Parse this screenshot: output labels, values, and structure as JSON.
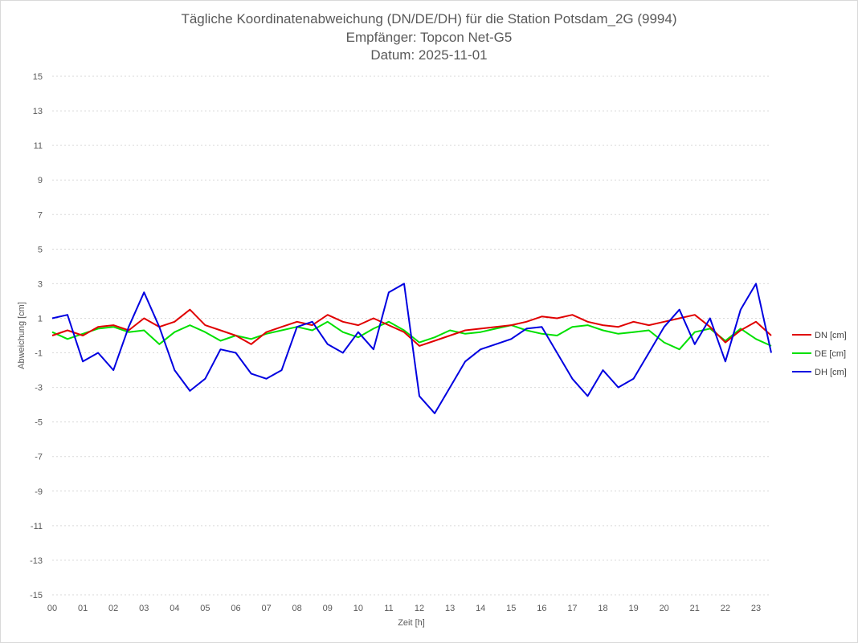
{
  "chart_data": {
    "type": "line",
    "title_lines": [
      "Tägliche Koordinatenabweichung (DN/DE/DH) für die Station Potsdam_2G (9994)",
      "Empfänger: Topcon Net-G5",
      "Datum: 2025-11-01"
    ],
    "xlabel": "Zeit [h]",
    "ylabel": "Abweichung [cm]",
    "xlim": [
      0,
      23.5
    ],
    "ylim": [
      -15,
      15
    ],
    "x_tick_labels": [
      "00",
      "01",
      "02",
      "03",
      "04",
      "05",
      "06",
      "07",
      "08",
      "09",
      "10",
      "11",
      "12",
      "13",
      "14",
      "15",
      "16",
      "17",
      "18",
      "19",
      "20",
      "21",
      "22",
      "23"
    ],
    "y_ticks": [
      15,
      13,
      11,
      9,
      7,
      5,
      3,
      1,
      -1,
      -3,
      -5,
      -7,
      -9,
      -11,
      -13,
      -15
    ],
    "grid": "horizontal dotted",
    "legend_position": "right",
    "x": [
      0,
      0.5,
      1,
      1.5,
      2,
      2.5,
      3,
      3.5,
      4,
      4.5,
      5,
      5.5,
      6,
      6.5,
      7,
      7.5,
      8,
      8.5,
      9,
      9.5,
      10,
      10.5,
      11,
      11.5,
      12,
      12.5,
      13,
      13.5,
      14,
      14.5,
      15,
      15.5,
      16,
      16.5,
      17,
      17.5,
      18,
      18.5,
      19,
      19.5,
      20,
      20.5,
      21,
      21.5,
      22,
      22.5,
      23,
      23.5
    ],
    "series": [
      {
        "name": "DN [cm]",
        "color": "#e00000",
        "values": [
          0,
          0.3,
          0,
          0.5,
          0.6,
          0.3,
          1.0,
          0.5,
          0.8,
          1.5,
          0.6,
          0.3,
          0,
          -0.5,
          0.2,
          0.5,
          0.8,
          0.6,
          1.2,
          0.8,
          0.6,
          1.0,
          0.6,
          0.2,
          -0.6,
          -0.3,
          0,
          0.3,
          0.4,
          0.5,
          0.6,
          0.8,
          1.1,
          1.0,
          1.2,
          0.8,
          0.6,
          0.5,
          0.8,
          0.6,
          0.8,
          1.0,
          1.2,
          0.5,
          -0.4,
          0.3,
          0.8,
          0
        ]
      },
      {
        "name": "DE [cm]",
        "color": "#00e000",
        "values": [
          0.2,
          -0.2,
          0.1,
          0.4,
          0.5,
          0.2,
          0.3,
          -0.5,
          0.2,
          0.6,
          0.2,
          -0.3,
          0,
          -0.2,
          0.1,
          0.3,
          0.5,
          0.3,
          0.8,
          0.2,
          -0.1,
          0.4,
          0.8,
          0.3,
          -0.4,
          -0.1,
          0.3,
          0.1,
          0.2,
          0.4,
          0.6,
          0.3,
          0.1,
          0,
          0.5,
          0.6,
          0.3,
          0.1,
          0.2,
          0.3,
          -0.4,
          -0.8,
          0.2,
          0.4,
          -0.3,
          0.4,
          -0.2,
          -0.6
        ]
      },
      {
        "name": "DH [cm]",
        "color": "#0000e0",
        "values": [
          1.0,
          1.2,
          -1.5,
          -1.0,
          -2.0,
          0.5,
          2.5,
          0.5,
          -2.0,
          -3.2,
          -2.5,
          -0.8,
          -1.0,
          -2.2,
          -2.5,
          -2.0,
          0.5,
          0.8,
          -0.5,
          -1.0,
          0.2,
          -0.8,
          2.5,
          3.0,
          -3.5,
          -4.5,
          -3.0,
          -1.5,
          -0.8,
          -0.5,
          -0.2,
          0.4,
          0.5,
          -1.0,
          -2.5,
          -3.5,
          -2.0,
          -3.0,
          -2.5,
          -1.0,
          0.5,
          1.5,
          -0.5,
          1.0,
          -1.5,
          1.5,
          3.0,
          -1.0
        ]
      }
    ]
  }
}
